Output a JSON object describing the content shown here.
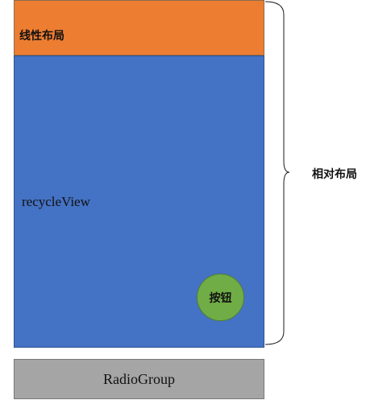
{
  "linear_layout": {
    "label": "线性布局",
    "color": "#ed7d31"
  },
  "recycler": {
    "label": "recycleView",
    "color": "#4472c4"
  },
  "fab": {
    "label": "按钮",
    "color": "#70ad47"
  },
  "radio_group": {
    "label": "RadioGroup",
    "color": "#a5a5a5"
  },
  "relative_layout": {
    "label": "相对布局"
  }
}
